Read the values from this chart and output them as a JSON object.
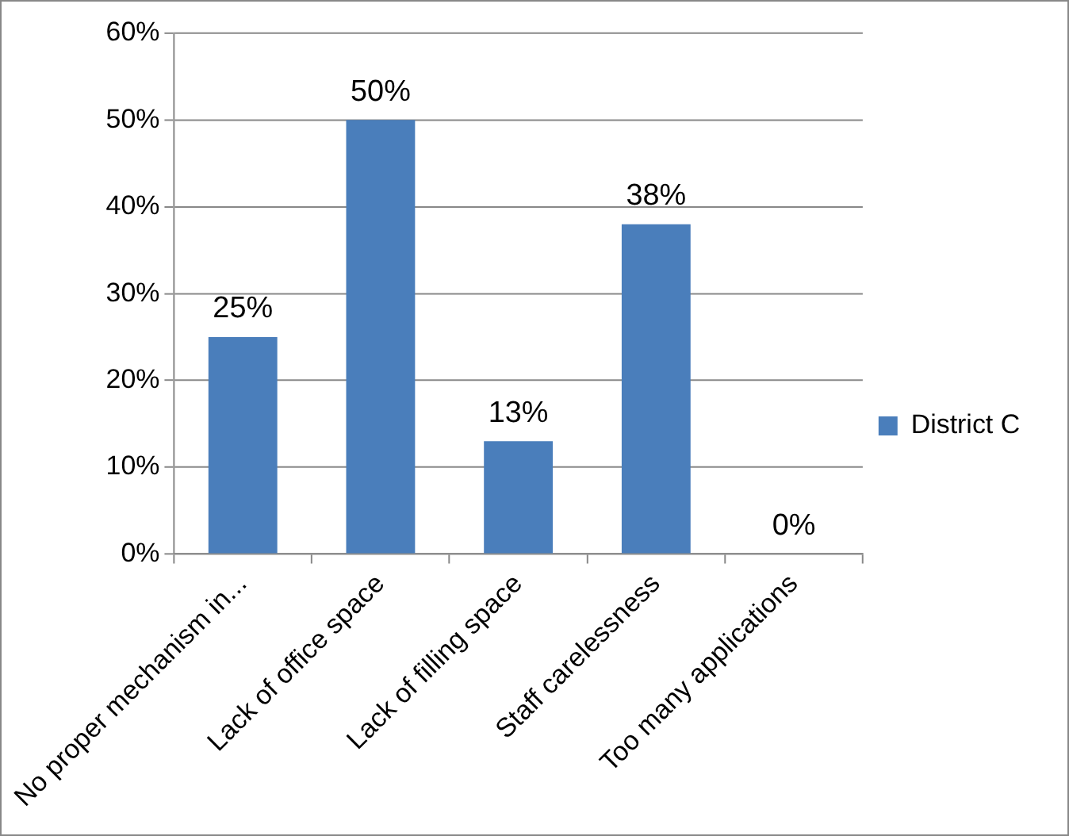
{
  "chart_data": {
    "type": "bar",
    "categories": [
      "No proper mechanism in...",
      "Lack of office space",
      "Lack of filling space",
      "Staff carelessness",
      "Too many applications"
    ],
    "series": [
      {
        "name": "District C",
        "color": "#4a7ebb",
        "values": [
          25,
          50,
          13,
          38,
          0
        ],
        "value_labels": [
          "25%",
          "50%",
          "13%",
          "38%",
          "0%"
        ]
      }
    ],
    "ylim": [
      0,
      60
    ],
    "yticks": [
      {
        "value": 0,
        "label": "0%"
      },
      {
        "value": 10,
        "label": "10%"
      },
      {
        "value": 20,
        "label": "20%"
      },
      {
        "value": 30,
        "label": "30%"
      },
      {
        "value": 40,
        "label": "40%"
      },
      {
        "value": 50,
        "label": "50%"
      },
      {
        "value": 60,
        "label": "60%"
      }
    ],
    "grid": "y",
    "legend": "right"
  }
}
